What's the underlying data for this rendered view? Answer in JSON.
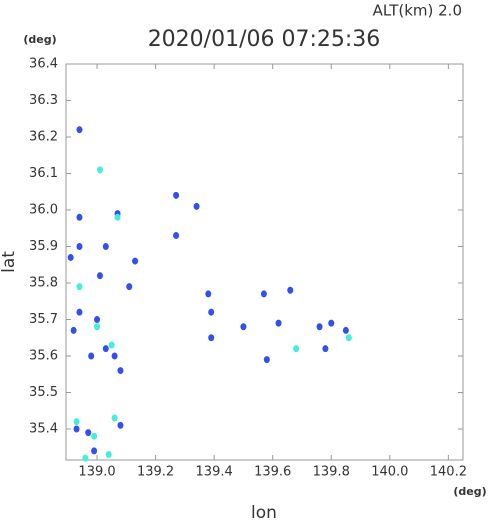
{
  "chart_data": {
    "type": "scatter",
    "title": "2020/01/06 07:25:36",
    "subtitle": "ALT(km)  2.0",
    "x_label": "lon",
    "y_label": "lat",
    "x_unit": "(deg)",
    "y_unit": "(deg)",
    "xlim": [
      138.894,
      140.25
    ],
    "ylim": [
      35.315,
      36.4
    ],
    "xticks": [
      {
        "value": 139,
        "label": "139.0"
      },
      139.2,
      139.4,
      139.6,
      139.8,
      {
        "value": 140,
        "label": "140.0"
      },
      140.2
    ],
    "yticks": [
      {
        "value": 35.4,
        "label": "35.4"
      },
      35.5,
      35.6,
      35.7,
      35.8,
      35.9,
      {
        "value": 36,
        "label": "36.0"
      },
      36.1,
      36.2,
      36.3,
      36.4
    ],
    "series": [
      {
        "color": "#3350ee",
        "x": [
          138.94,
          138.94,
          138.94,
          138.91,
          139.01,
          139.03,
          139.07,
          139.13,
          139.27,
          139.27,
          139.34,
          139.38,
          139.39,
          139.39,
          139.5,
          139.57,
          139.66,
          139.62,
          139.58,
          139.76,
          139.8,
          139.78,
          139.85,
          138.92,
          138.94,
          139.0,
          138.98,
          139.03,
          139.06,
          139.08,
          138.93,
          138.97,
          138.99,
          139.08,
          139.11
        ],
        "values": [
          36.22,
          35.98,
          35.9,
          35.87,
          35.82,
          35.9,
          35.99,
          35.86,
          35.93,
          36.04,
          36.01,
          35.77,
          35.72,
          35.65,
          35.68,
          35.77,
          35.78,
          35.69,
          35.59,
          35.68,
          35.69,
          35.62,
          35.67,
          35.67,
          35.72,
          35.7,
          35.6,
          35.62,
          35.6,
          35.56,
          35.4,
          35.39,
          35.34,
          35.41,
          35.79
        ]
      },
      {
        "color": "#44eedd",
        "x": [
          139.01,
          138.94,
          139.07,
          139.0,
          139.05,
          139.86,
          139.68,
          138.99,
          138.93,
          139.06,
          139.04,
          138.96
        ],
        "values": [
          36.11,
          35.79,
          35.98,
          35.68,
          35.63,
          35.65,
          35.62,
          35.38,
          35.42,
          35.43,
          35.33,
          35.32
        ]
      }
    ]
  }
}
